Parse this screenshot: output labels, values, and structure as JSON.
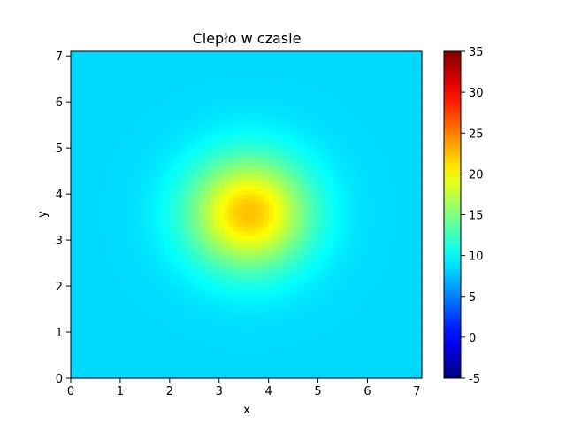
{
  "chart_data": {
    "type": "heatmap",
    "title": "Ciepło w czasie",
    "xlabel": "x",
    "ylabel": "y",
    "xlim": [
      0,
      7.1
    ],
    "ylim": [
      0,
      7.1
    ],
    "xticks": [
      "0",
      "1",
      "2",
      "3",
      "4",
      "5",
      "6",
      "7"
    ],
    "yticks": [
      "0",
      "1",
      "2",
      "3",
      "4",
      "5",
      "6",
      "7"
    ],
    "field": {
      "description_of_values": "temperature field, gaussian hot spot",
      "background_value": 8.5,
      "peak_value": 22.5,
      "center": [
        3.6,
        3.6
      ],
      "sigma": 0.85
    },
    "colorbar": {
      "colormap": "jet",
      "range": [
        -5,
        35
      ],
      "ticks": [
        "-5",
        "0",
        "5",
        "10",
        "15",
        "20",
        "25",
        "30",
        "35"
      ]
    },
    "grid": false
  }
}
